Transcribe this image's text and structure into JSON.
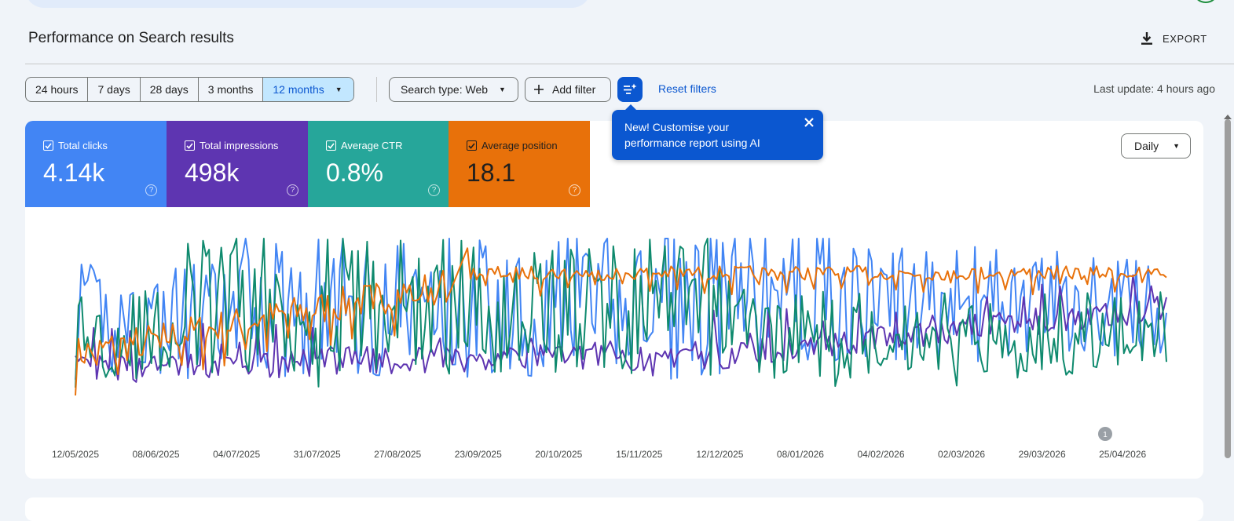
{
  "header": {
    "title": "Performance on Search results",
    "export_label": "EXPORT"
  },
  "filters": {
    "ranges": [
      "24 hours",
      "7 days",
      "28 days",
      "3 months",
      "12 months"
    ],
    "selected_range": "12 months",
    "search_type": "Search type: Web",
    "add_filter": "Add filter",
    "reset": "Reset filters",
    "last_update": "Last update: 4 hours ago"
  },
  "tooltip": {
    "text": "New! Customise your performance report using AI"
  },
  "metrics": [
    {
      "label": "Total clicks",
      "value": "4.14k",
      "color": "#4285f4",
      "checked": true
    },
    {
      "label": "Total impressions",
      "value": "498k",
      "color": "#5e35b1",
      "checked": true
    },
    {
      "label": "Average CTR",
      "value": "0.8%",
      "color": "#26a69a",
      "checked": true
    },
    {
      "label": "Average position",
      "value": "18.1",
      "color": "#e8710a",
      "checked": true
    }
  ],
  "granularity": "Daily",
  "annotation_badge": "1",
  "chart_data": {
    "type": "line",
    "x_tick_labels": [
      "12/05/2025",
      "08/06/2025",
      "04/07/2025",
      "31/07/2025",
      "27/08/2025",
      "23/09/2025",
      "20/10/2025",
      "15/11/2025",
      "12/12/2025",
      "08/01/2026",
      "04/02/2026",
      "02/03/2026",
      "29/03/2026",
      "25/04/2026"
    ],
    "x_range": [
      "11/05/2025",
      "04/05/2026"
    ],
    "grid": false,
    "legend": "metric cards (top-left)",
    "series": [
      {
        "name": "Total clicks",
        "color": "#4285f4"
      },
      {
        "name": "Total impressions",
        "color": "#5e35b1"
      },
      {
        "name": "Average CTR",
        "color": "#0f8a6e"
      },
      {
        "name": "Average position",
        "color": "#e8710a"
      }
    ]
  }
}
